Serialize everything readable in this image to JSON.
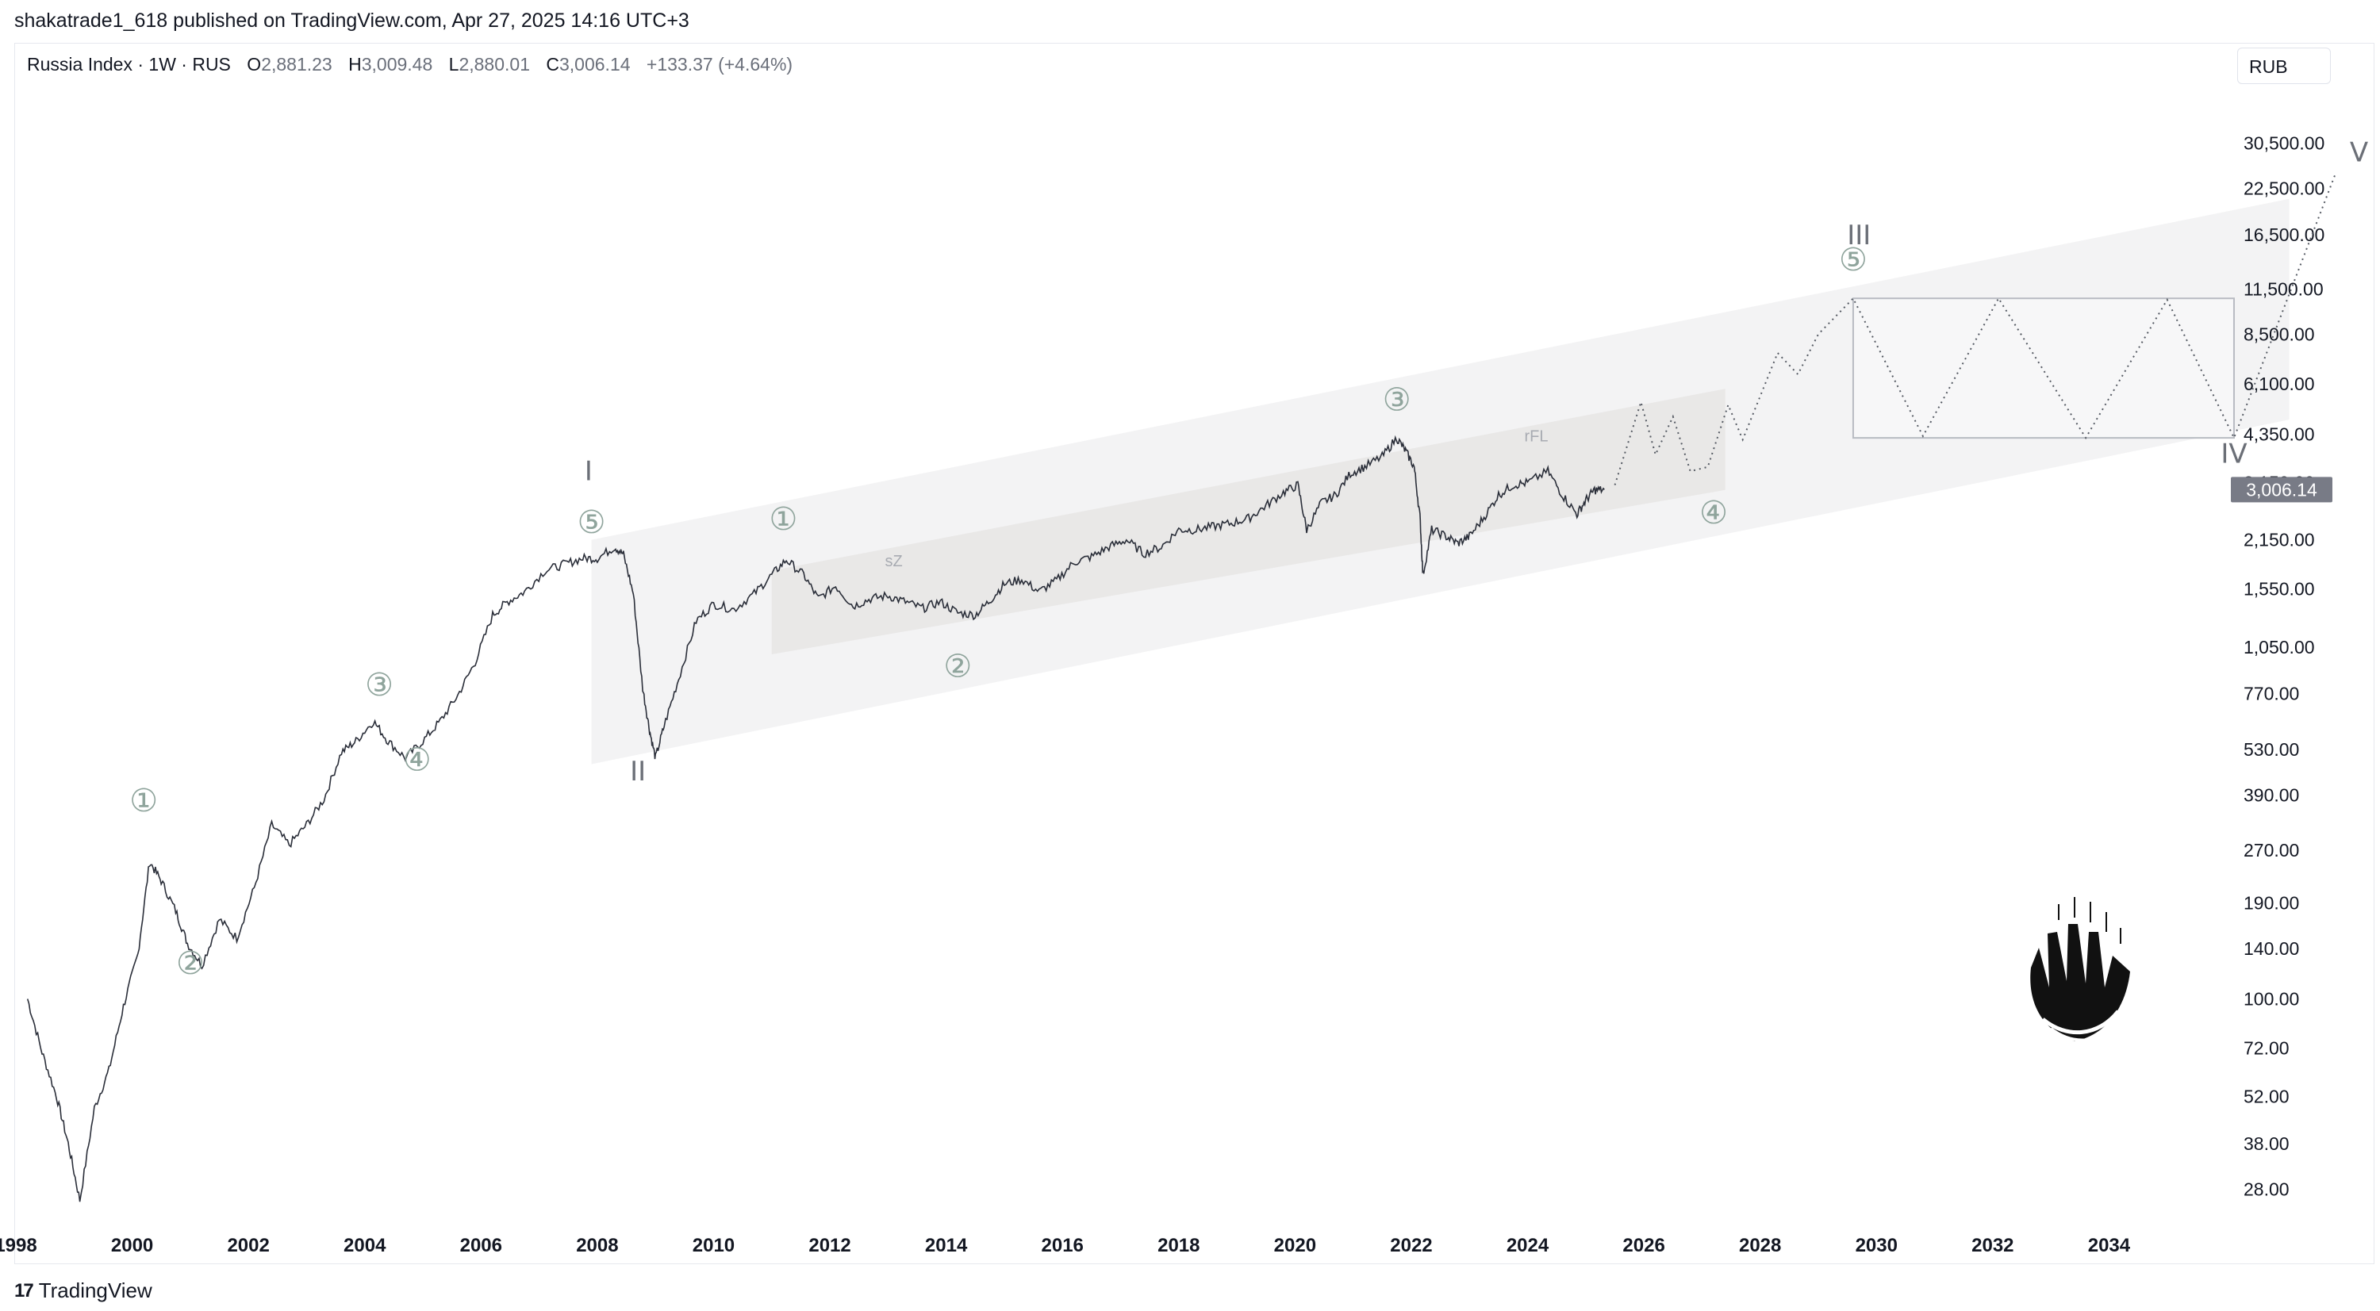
{
  "header": {
    "published_text": "shakatrade1_618 published on TradingView.com, Apr 27, 2025 14:16 UTC+3"
  },
  "legend": {
    "symbol": "Russia Index · 1W · RUS",
    "o_label": "O",
    "o_value": "2,881.23",
    "h_label": "H",
    "h_value": "3,009.48",
    "l_label": "L",
    "l_value": "2,880.01",
    "c_label": "C",
    "c_value": "3,006.14",
    "change": "+133.37 (+4.64%)"
  },
  "currency_button": "RUB",
  "footer": {
    "brand": "TradingView",
    "mark": "17"
  },
  "colors": {
    "price_line": "#2a2e39",
    "channel_fill": "#ececee",
    "inner_channel_fill": "#e4e2e0",
    "wave_label": "#8a8e96",
    "minor_circle": "#8fa49c",
    "last_price_bg": "#787b86",
    "axis_text": "#131722"
  },
  "chart_data": {
    "type": "line",
    "title": "",
    "scale": "log",
    "ylim": [
      22,
      42000
    ],
    "xlim": [
      1998.0,
      2036.0
    ],
    "y_ticks": [
      {
        "value": 28,
        "label": "28.00"
      },
      {
        "value": 38,
        "label": "38.00"
      },
      {
        "value": 52,
        "label": "52.00"
      },
      {
        "value": 72,
        "label": "72.00"
      },
      {
        "value": 100,
        "label": "100.00"
      },
      {
        "value": 140,
        "label": "140.00"
      },
      {
        "value": 190,
        "label": "190.00"
      },
      {
        "value": 270,
        "label": "270.00"
      },
      {
        "value": 390,
        "label": "390.00"
      },
      {
        "value": 530,
        "label": "530.00"
      },
      {
        "value": 770,
        "label": "770.00"
      },
      {
        "value": 1050,
        "label": "1,050.00"
      },
      {
        "value": 1550,
        "label": "1,550.00"
      },
      {
        "value": 2150,
        "label": "2,150.00"
      },
      {
        "value": 3150,
        "label": "3,150.00"
      },
      {
        "value": 4350,
        "label": "4,350.00"
      },
      {
        "value": 6100,
        "label": "6,100.00"
      },
      {
        "value": 8500,
        "label": "8,500.00"
      },
      {
        "value": 11500,
        "label": "11,500.00"
      },
      {
        "value": 16500,
        "label": "16,500.00"
      },
      {
        "value": 22500,
        "label": "22,500.00"
      },
      {
        "value": 30500,
        "label": "30,500.00"
      }
    ],
    "x_ticks": [
      "1998",
      "2000",
      "2002",
      "2004",
      "2006",
      "2008",
      "2010",
      "2012",
      "2014",
      "2016",
      "2018",
      "2020",
      "2022",
      "2024",
      "2026",
      "2028",
      "2030",
      "2032",
      "2034"
    ],
    "last_price": {
      "value": 3006.14,
      "label": "3,006.14"
    },
    "series": [
      {
        "values": [
          [
            1998.2,
            100
          ],
          [
            1998.45,
            70
          ],
          [
            1998.7,
            52
          ],
          [
            1998.9,
            38
          ],
          [
            1999.1,
            26
          ],
          [
            1999.35,
            48
          ],
          [
            1999.6,
            62
          ],
          [
            1999.85,
            95
          ],
          [
            2000.1,
            135
          ],
          [
            2000.3,
            250
          ],
          [
            2000.5,
            220
          ],
          [
            2000.75,
            180
          ],
          [
            2000.95,
            145
          ],
          [
            2001.2,
            125
          ],
          [
            2001.5,
            170
          ],
          [
            2001.8,
            150
          ],
          [
            2002.1,
            210
          ],
          [
            2002.4,
            320
          ],
          [
            2002.7,
            280
          ],
          [
            2003.0,
            320
          ],
          [
            2003.3,
            380
          ],
          [
            2003.6,
            520
          ],
          [
            2003.85,
            560
          ],
          [
            2004.15,
            640
          ],
          [
            2004.4,
            560
          ],
          [
            2004.7,
            500
          ],
          [
            2005.0,
            560
          ],
          [
            2005.3,
            640
          ],
          [
            2005.6,
            760
          ],
          [
            2005.9,
            950
          ],
          [
            2006.2,
            1300
          ],
          [
            2006.45,
            1420
          ],
          [
            2006.75,
            1520
          ],
          [
            2007.1,
            1750
          ],
          [
            2007.45,
            1830
          ],
          [
            2007.75,
            1900
          ],
          [
            2008.0,
            1900
          ],
          [
            2008.3,
            2050
          ],
          [
            2008.45,
            1950
          ],
          [
            2008.62,
            1500
          ],
          [
            2008.78,
            800
          ],
          [
            2008.9,
            600
          ],
          [
            2009.0,
            500
          ],
          [
            2009.15,
            620
          ],
          [
            2009.4,
            850
          ],
          [
            2009.7,
            1250
          ],
          [
            2010.0,
            1400
          ],
          [
            2010.35,
            1350
          ],
          [
            2010.7,
            1500
          ],
          [
            2011.0,
            1700
          ],
          [
            2011.25,
            1880
          ],
          [
            2011.55,
            1700
          ],
          [
            2011.8,
            1450
          ],
          [
            2012.1,
            1580
          ],
          [
            2012.4,
            1380
          ],
          [
            2012.7,
            1450
          ],
          [
            2013.0,
            1480
          ],
          [
            2013.3,
            1420
          ],
          [
            2013.6,
            1360
          ],
          [
            2013.9,
            1420
          ],
          [
            2014.2,
            1320
          ],
          [
            2014.5,
            1300
          ],
          [
            2014.75,
            1430
          ],
          [
            2015.0,
            1600
          ],
          [
            2015.3,
            1650
          ],
          [
            2015.6,
            1520
          ],
          [
            2015.9,
            1640
          ],
          [
            2016.2,
            1850
          ],
          [
            2016.5,
            1920
          ],
          [
            2016.8,
            2050
          ],
          [
            2017.1,
            2150
          ],
          [
            2017.4,
            1960
          ],
          [
            2017.7,
            2050
          ],
          [
            2018.0,
            2300
          ],
          [
            2018.3,
            2300
          ],
          [
            2018.6,
            2350
          ],
          [
            2018.9,
            2400
          ],
          [
            2019.2,
            2480
          ],
          [
            2019.5,
            2700
          ],
          [
            2019.8,
            2950
          ],
          [
            2020.05,
            3100
          ],
          [
            2020.2,
            2300
          ],
          [
            2020.45,
            2750
          ],
          [
            2020.7,
            2900
          ],
          [
            2020.95,
            3350
          ],
          [
            2021.2,
            3500
          ],
          [
            2021.5,
            3750
          ],
          [
            2021.75,
            4250
          ],
          [
            2021.9,
            3900
          ],
          [
            2022.05,
            3500
          ],
          [
            2022.15,
            2500
          ],
          [
            2022.2,
            1700
          ],
          [
            2022.35,
            2300
          ],
          [
            2022.6,
            2200
          ],
          [
            2022.8,
            2100
          ],
          [
            2023.0,
            2200
          ],
          [
            2023.25,
            2500
          ],
          [
            2023.5,
            2900
          ],
          [
            2023.75,
            3100
          ],
          [
            2024.0,
            3150
          ],
          [
            2024.35,
            3400
          ],
          [
            2024.6,
            2900
          ],
          [
            2024.85,
            2550
          ],
          [
            2025.0,
            2800
          ],
          [
            2025.15,
            3000
          ],
          [
            2025.32,
            3006
          ]
        ]
      }
    ],
    "projection_path": [
      [
        2025.5,
        3100
      ],
      [
        2025.95,
        5400
      ],
      [
        2026.2,
        3800
      ],
      [
        2026.5,
        4900
      ],
      [
        2026.8,
        3400
      ],
      [
        2027.1,
        3500
      ],
      [
        2027.45,
        5300
      ],
      [
        2027.7,
        4200
      ],
      [
        2028.3,
        7500
      ],
      [
        2028.65,
        6500
      ],
      [
        2029.0,
        8500
      ],
      [
        2029.6,
        10800
      ],
      [
        2030.8,
        4300
      ],
      [
        2032.1,
        10800
      ],
      [
        2033.6,
        4250
      ],
      [
        2035.0,
        10700
      ],
      [
        2036.15,
        4250
      ],
      [
        2037.9,
        25000
      ]
    ],
    "correction_box": {
      "x": [
        2029.6,
        2036.15
      ],
      "y": [
        4250,
        10800
      ]
    },
    "outer_channel": {
      "lower": [
        [
          2007.9,
          480
        ],
        [
          2037.1,
          4800
        ]
      ],
      "upper": [
        [
          2007.9,
          2150
        ],
        [
          2037.1,
          21000
        ]
      ]
    },
    "inner_channel": {
      "lower": [
        [
          2011.0,
          1000
        ],
        [
          2027.4,
          3000
        ]
      ],
      "upper": [
        [
          2011.0,
          1750
        ],
        [
          2027.4,
          5900
        ]
      ]
    },
    "wave_labels": [
      {
        "text": "I",
        "x": 2007.85,
        "y": 3200,
        "kind": "roman"
      },
      {
        "text": "II",
        "x": 2008.7,
        "y": 430,
        "kind": "roman"
      },
      {
        "text": "III",
        "x": 2029.7,
        "y": 15500,
        "kind": "roman"
      },
      {
        "text": "IV",
        "x": 2036.15,
        "y": 3600,
        "kind": "roman"
      },
      {
        "text": "V",
        "x": 2038.3,
        "y": 27000,
        "kind": "roman"
      },
      {
        "text": "①",
        "x": 2000.2,
        "y": 350,
        "kind": "circled"
      },
      {
        "text": "②",
        "x": 2001.0,
        "y": 118,
        "kind": "circled"
      },
      {
        "text": "③",
        "x": 2004.25,
        "y": 760,
        "kind": "circled"
      },
      {
        "text": "④",
        "x": 2004.9,
        "y": 460,
        "kind": "circled"
      },
      {
        "text": "⑤",
        "x": 2007.9,
        "y": 2250,
        "kind": "circled"
      },
      {
        "text": "①",
        "x": 2011.2,
        "y": 2300,
        "kind": "circled"
      },
      {
        "text": "②",
        "x": 2014.2,
        "y": 860,
        "kind": "circled"
      },
      {
        "text": "③",
        "x": 2021.75,
        "y": 5100,
        "kind": "circled"
      },
      {
        "text": "④",
        "x": 2027.2,
        "y": 2400,
        "kind": "circled"
      },
      {
        "text": "⑤",
        "x": 2029.6,
        "y": 13000,
        "kind": "circled"
      }
    ],
    "annotations": [
      {
        "text": "sZ",
        "x": 2013.1,
        "y": 1800
      },
      {
        "text": "rFL",
        "x": 2024.15,
        "y": 4150
      }
    ]
  }
}
